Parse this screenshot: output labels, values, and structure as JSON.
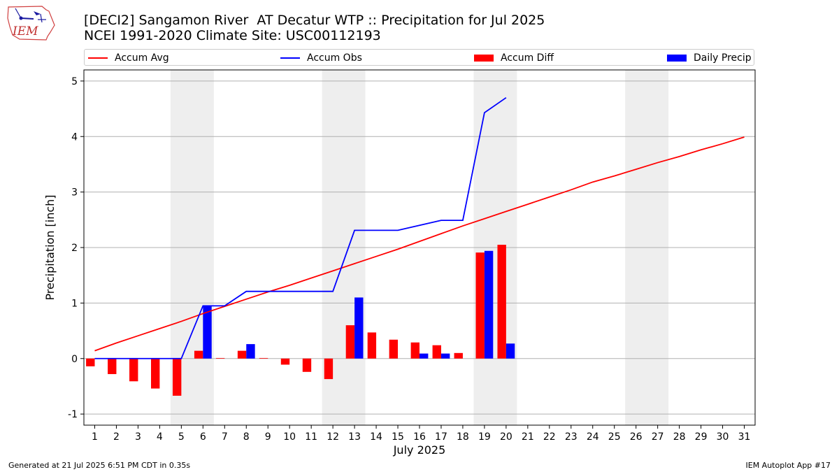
{
  "header": {
    "title_line1": "[DECI2] Sangamon River  AT Decatur WTP :: Precipitation for Jul 2025",
    "title_line2": "NCEI 1991-2020 Climate Site: USC00112193",
    "logo_text": "IEM"
  },
  "legend": {
    "accum_avg": "Accum Avg",
    "accum_obs": "Accum Obs",
    "accum_diff": "Accum Diff",
    "daily_precip": "Daily Precip"
  },
  "footer": {
    "generated": "Generated at 21 Jul 2025 6:51 PM CDT in 0.35s",
    "app": "IEM Autoplot App #17"
  },
  "colors": {
    "avg": "#ff0000",
    "obs": "#0000ff",
    "diff": "#ff0000",
    "daily": "#0000ff",
    "weekend": "#eeeeee",
    "grid": "#b0b0b0"
  },
  "chart_data": {
    "type": "bar",
    "xlabel": "July 2025",
    "ylabel": "Precipitation [inch]",
    "ylim": [
      -1.2,
      5.2
    ],
    "yticks": [
      -1,
      0,
      1,
      2,
      3,
      4,
      5
    ],
    "days": [
      1,
      2,
      3,
      4,
      5,
      6,
      7,
      8,
      9,
      10,
      11,
      12,
      13,
      14,
      15,
      16,
      17,
      18,
      19,
      20,
      21,
      22,
      23,
      24,
      25,
      26,
      27,
      28,
      29,
      30,
      31
    ],
    "weekend_spans": [
      [
        4.5,
        6.5
      ],
      [
        11.5,
        13.5
      ],
      [
        18.5,
        20.5
      ],
      [
        25.5,
        27.5
      ]
    ],
    "grid": "horizontal",
    "legend_position": "top",
    "series": [
      {
        "name": "Accum Avg",
        "kind": "line",
        "x": [
          1,
          2,
          3,
          4,
          5,
          6,
          7,
          8,
          9,
          10,
          11,
          12,
          13,
          14,
          15,
          16,
          17,
          18,
          19,
          20,
          21,
          22,
          23,
          24,
          25,
          26,
          27,
          28,
          29,
          30,
          31
        ],
        "values": [
          0.14,
          0.28,
          0.41,
          0.54,
          0.67,
          0.81,
          0.94,
          1.07,
          1.2,
          1.32,
          1.45,
          1.58,
          1.71,
          1.84,
          1.97,
          2.11,
          2.25,
          2.39,
          2.52,
          2.65,
          2.78,
          2.91,
          3.04,
          3.18,
          3.29,
          3.41,
          3.53,
          3.64,
          3.76,
          3.87,
          3.99
        ]
      },
      {
        "name": "Accum Obs",
        "kind": "line",
        "x": [
          1,
          2,
          3,
          4,
          5,
          6,
          7,
          8,
          9,
          10,
          11,
          12,
          13,
          14,
          15,
          16,
          17,
          18,
          19,
          20
        ],
        "values": [
          0,
          0,
          0,
          0,
          0,
          0.95,
          0.95,
          1.21,
          1.21,
          1.21,
          1.21,
          1.21,
          2.31,
          2.31,
          2.31,
          2.4,
          2.49,
          2.49,
          4.43,
          4.7
        ]
      },
      {
        "name": "Accum Diff",
        "kind": "bar",
        "x": [
          1,
          2,
          3,
          4,
          5,
          6,
          7,
          8,
          9,
          10,
          11,
          12,
          13,
          14,
          15,
          16,
          17,
          18,
          19,
          20
        ],
        "values": [
          -0.14,
          -0.28,
          -0.41,
          -0.54,
          -0.67,
          0.14,
          0.01,
          0.14,
          0.01,
          -0.11,
          -0.24,
          -0.37,
          0.6,
          0.47,
          0.34,
          0.29,
          0.24,
          0.1,
          1.91,
          2.05
        ]
      },
      {
        "name": "Daily Precip",
        "kind": "bar",
        "x": [
          1,
          2,
          3,
          4,
          5,
          6,
          7,
          8,
          9,
          10,
          11,
          12,
          13,
          14,
          15,
          16,
          17,
          18,
          19,
          20
        ],
        "values": [
          0,
          0,
          0,
          0,
          0,
          0.95,
          0,
          0.26,
          0,
          0,
          0,
          0,
          1.1,
          0,
          0,
          0.09,
          0.09,
          0,
          1.94,
          0.27
        ]
      }
    ]
  }
}
